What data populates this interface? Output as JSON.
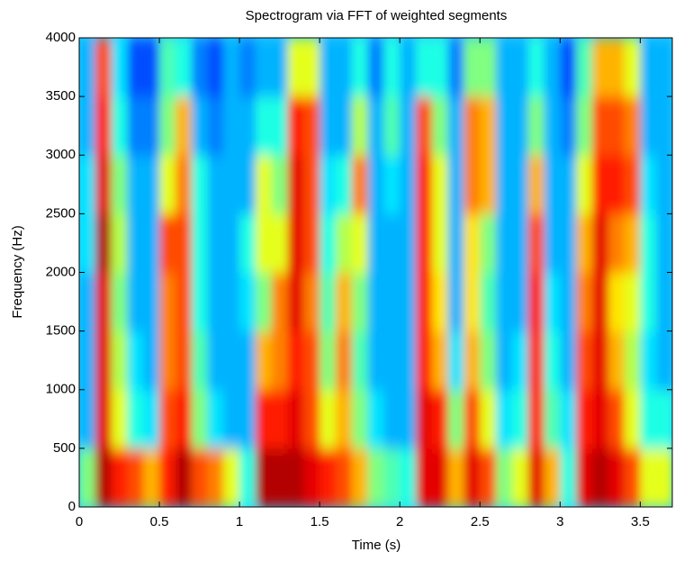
{
  "chart_data": {
    "type": "heatmap",
    "title": "Spectrogram via FFT of weighted segments",
    "x_label": "Time (s)",
    "y_label": "Frequency (Hz)",
    "colormap": "jet",
    "xlim": [
      0,
      3.7
    ],
    "ylim": [
      0,
      4000
    ],
    "xticks": [
      0,
      0.5,
      1,
      1.5,
      2,
      2.5,
      3,
      3.5
    ],
    "yticks": [
      0,
      500,
      1000,
      1500,
      2000,
      2500,
      3000,
      3500,
      4000
    ],
    "xbins": [
      0,
      0.1,
      0.2,
      0.3,
      0.4,
      0.5,
      0.6,
      0.7,
      0.8,
      0.9,
      1.0,
      1.1,
      1.2,
      1.3,
      1.4,
      1.5,
      1.6,
      1.7,
      1.8,
      1.9,
      2.0,
      2.1,
      2.2,
      2.3,
      2.4,
      2.5,
      2.6,
      2.7,
      2.8,
      2.9,
      3.0,
      3.1,
      3.2,
      3.3,
      3.4,
      3.5,
      3.6,
      3.7
    ],
    "ybins": [
      0,
      500,
      1000,
      1500,
      2000,
      2500,
      3000,
      3500,
      4000
    ],
    "z": [
      [
        0.5,
        0.95,
        0.85,
        0.8,
        0.7,
        0.85,
        0.95,
        0.8,
        0.75,
        0.6,
        0.4,
        0.95,
        0.95,
        0.95,
        0.9,
        0.85,
        0.8,
        0.7,
        0.5,
        0.45,
        0.4,
        0.9,
        0.9,
        0.7,
        0.9,
        0.8,
        0.5,
        0.6,
        0.9,
        0.7,
        0.4,
        0.9,
        0.95,
        0.9,
        0.8,
        0.6,
        0.6
      ],
      [
        0.3,
        0.9,
        0.6,
        0.4,
        0.35,
        0.8,
        0.85,
        0.5,
        0.35,
        0.3,
        0.3,
        0.85,
        0.85,
        0.9,
        0.8,
        0.6,
        0.7,
        0.5,
        0.35,
        0.3,
        0.3,
        0.9,
        0.85,
        0.5,
        0.8,
        0.6,
        0.35,
        0.4,
        0.85,
        0.45,
        0.35,
        0.85,
        0.9,
        0.8,
        0.6,
        0.4,
        0.4
      ],
      [
        0.3,
        0.9,
        0.55,
        0.35,
        0.3,
        0.75,
        0.8,
        0.45,
        0.3,
        0.3,
        0.3,
        0.7,
        0.75,
        0.85,
        0.8,
        0.5,
        0.75,
        0.45,
        0.3,
        0.3,
        0.3,
        0.85,
        0.7,
        0.35,
        0.7,
        0.5,
        0.3,
        0.35,
        0.85,
        0.4,
        0.3,
        0.8,
        0.9,
        0.7,
        0.55,
        0.35,
        0.3
      ],
      [
        0.3,
        0.9,
        0.5,
        0.3,
        0.3,
        0.75,
        0.8,
        0.4,
        0.3,
        0.3,
        0.35,
        0.5,
        0.75,
        0.9,
        0.75,
        0.45,
        0.7,
        0.5,
        0.3,
        0.3,
        0.3,
        0.85,
        0.65,
        0.3,
        0.65,
        0.45,
        0.3,
        0.3,
        0.85,
        0.35,
        0.3,
        0.75,
        0.9,
        0.65,
        0.6,
        0.4,
        0.3
      ],
      [
        0.35,
        0.95,
        0.55,
        0.3,
        0.3,
        0.8,
        0.8,
        0.4,
        0.3,
        0.3,
        0.4,
        0.6,
        0.6,
        0.9,
        0.8,
        0.4,
        0.55,
        0.6,
        0.3,
        0.3,
        0.3,
        0.85,
        0.6,
        0.3,
        0.65,
        0.5,
        0.3,
        0.3,
        0.8,
        0.3,
        0.3,
        0.7,
        0.9,
        0.75,
        0.7,
        0.4,
        0.3
      ],
      [
        0.35,
        0.9,
        0.5,
        0.3,
        0.3,
        0.6,
        0.75,
        0.4,
        0.3,
        0.3,
        0.3,
        0.6,
        0.5,
        0.9,
        0.8,
        0.35,
        0.4,
        0.75,
        0.3,
        0.35,
        0.3,
        0.85,
        0.6,
        0.3,
        0.75,
        0.7,
        0.3,
        0.3,
        0.7,
        0.3,
        0.3,
        0.6,
        0.85,
        0.85,
        0.8,
        0.35,
        0.3
      ],
      [
        0.3,
        0.85,
        0.4,
        0.25,
        0.25,
        0.5,
        0.7,
        0.3,
        0.25,
        0.3,
        0.3,
        0.4,
        0.4,
        0.85,
        0.8,
        0.3,
        0.3,
        0.55,
        0.3,
        0.45,
        0.3,
        0.8,
        0.5,
        0.3,
        0.75,
        0.7,
        0.3,
        0.3,
        0.5,
        0.3,
        0.25,
        0.5,
        0.8,
        0.8,
        0.75,
        0.3,
        0.3
      ],
      [
        0.3,
        0.8,
        0.35,
        0.2,
        0.2,
        0.45,
        0.4,
        0.25,
        0.2,
        0.3,
        0.25,
        0.3,
        0.3,
        0.6,
        0.6,
        0.3,
        0.3,
        0.4,
        0.25,
        0.4,
        0.3,
        0.4,
        0.4,
        0.25,
        0.5,
        0.5,
        0.3,
        0.3,
        0.4,
        0.3,
        0.2,
        0.45,
        0.7,
        0.7,
        0.6,
        0.3,
        0.3
      ]
    ]
  }
}
